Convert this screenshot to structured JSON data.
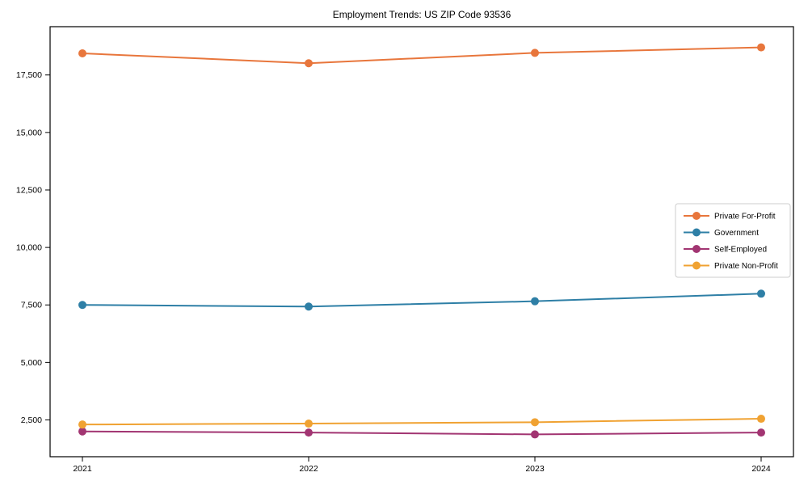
{
  "page": {
    "background": "#ffffff"
  },
  "chart_data": {
    "type": "line",
    "title": "Employment Trends: US ZIP Code 93536",
    "categories": [
      "2021",
      "2022",
      "2023",
      "2024"
    ],
    "series": [
      {
        "name": "Private For-Profit",
        "color": "#e8763c",
        "values": [
          18440,
          18010,
          18460,
          18700
        ]
      },
      {
        "name": "Government",
        "color": "#2e7fa6",
        "values": [
          7500,
          7430,
          7660,
          7990
        ]
      },
      {
        "name": "Self-Employed",
        "color": "#a23572",
        "values": [
          2000,
          1950,
          1870,
          1950
        ]
      },
      {
        "name": "Private Non-Profit",
        "color": "#f0a232",
        "values": [
          2300,
          2340,
          2400,
          2550
        ]
      }
    ],
    "xlabel": "",
    "ylabel": "",
    "ylim": [
      900,
      19600
    ],
    "yticks": [
      2500,
      5000,
      7500,
      10000,
      12500,
      15000,
      17500
    ],
    "ytick_labels": [
      "2,500",
      "5,000",
      "7,500",
      "10,000",
      "12,500",
      "15,000",
      "17,500"
    ],
    "grid": false,
    "axis_color": "#000000",
    "marker": "circle",
    "legend": {
      "position": "center-right",
      "background": "#ffffff",
      "border_color": "#cccccc"
    }
  }
}
